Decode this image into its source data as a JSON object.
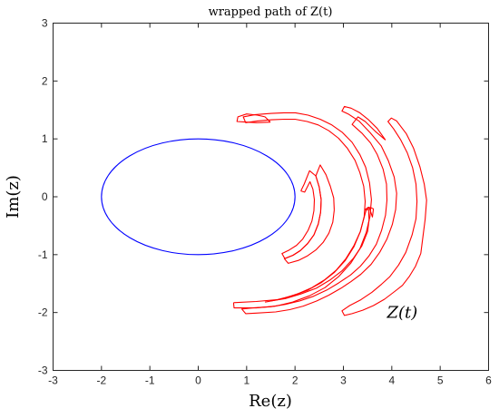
{
  "chart_data": {
    "type": "line",
    "title": "wrapped path of Z(t)",
    "xlabel": "Re(z)",
    "ylabel": "Im(z)",
    "xlim": [
      -3,
      6
    ],
    "ylim": [
      -3,
      3
    ],
    "xticks": [
      -3,
      -2,
      -1,
      0,
      1,
      2,
      3,
      4,
      5,
      6
    ],
    "yticks": [
      -3,
      -2,
      -1,
      0,
      1,
      2,
      3
    ],
    "grid": false,
    "annotation": "Z(t)",
    "annotation_point": [
      3.9,
      -2.0
    ],
    "series": [
      {
        "color": "#0000ff",
        "kind": "ellipse",
        "center": [
          0,
          0
        ],
        "semi_axes": [
          2,
          1
        ]
      },
      {
        "color": "#ff0000",
        "kind": "polyline",
        "points": [
          [
            4.6,
            -0.98
          ],
          [
            4.49,
            -1.2
          ],
          [
            4.36,
            -1.38
          ],
          [
            4.22,
            -1.53
          ],
          [
            4.07,
            -1.63
          ],
          [
            3.85,
            -1.77
          ],
          [
            3.62,
            -1.88
          ],
          [
            3.4,
            -1.96
          ],
          [
            3.18,
            -2.02
          ],
          [
            3.02,
            -2.05
          ],
          [
            2.97,
            -1.97
          ],
          [
            3.13,
            -1.88
          ],
          [
            3.36,
            -1.78
          ],
          [
            3.59,
            -1.65
          ],
          [
            3.79,
            -1.51
          ],
          [
            3.96,
            -1.38
          ],
          [
            4.14,
            -1.18
          ],
          [
            4.29,
            -0.96
          ],
          [
            4.42,
            -0.66
          ],
          [
            4.5,
            -0.38
          ],
          [
            4.52,
            -0.08
          ],
          [
            4.5,
            0.22
          ],
          [
            4.43,
            0.5
          ],
          [
            4.32,
            0.76
          ],
          [
            4.18,
            0.99
          ],
          [
            4.04,
            1.17
          ],
          [
            3.92,
            1.3
          ],
          [
            3.99,
            1.36
          ],
          [
            4.1,
            1.31
          ],
          [
            4.3,
            1.09
          ],
          [
            4.45,
            0.84
          ],
          [
            4.58,
            0.52
          ],
          [
            4.67,
            0.22
          ],
          [
            4.72,
            -0.06
          ],
          [
            4.69,
            -0.39
          ],
          [
            4.6,
            -0.98
          ]
        ]
      },
      {
        "color": "#ff0000",
        "kind": "polyline",
        "points": [
          [
            3.87,
            0.98
          ],
          [
            3.7,
            1.18
          ],
          [
            3.52,
            1.33
          ],
          [
            3.34,
            1.45
          ],
          [
            3.16,
            1.53
          ],
          [
            3.02,
            1.56
          ],
          [
            2.97,
            1.48
          ],
          [
            3.1,
            1.43
          ],
          [
            3.32,
            1.31
          ],
          [
            3.55,
            1.11
          ],
          [
            3.78,
            0.88
          ],
          [
            3.93,
            0.62
          ],
          [
            4.05,
            0.34
          ],
          [
            4.1,
            0.06
          ],
          [
            4.08,
            -0.22
          ],
          [
            4.01,
            -0.48
          ],
          [
            3.9,
            -0.73
          ],
          [
            3.75,
            -0.96
          ],
          [
            3.57,
            -1.17
          ],
          [
            3.36,
            -1.34
          ],
          [
            3.15,
            -1.47
          ],
          [
            2.95,
            -1.58
          ],
          [
            2.7,
            -1.7
          ],
          [
            2.45,
            -1.8
          ],
          [
            2.17,
            -1.89
          ],
          [
            1.89,
            -1.95
          ],
          [
            1.6,
            -1.99
          ],
          [
            1.2,
            -2.01
          ],
          [
            0.98,
            -2.02
          ],
          [
            0.9,
            -1.94
          ],
          [
            1.12,
            -1.92
          ],
          [
            1.5,
            -1.9
          ],
          [
            1.8,
            -1.86
          ],
          [
            2.1,
            -1.8
          ],
          [
            2.38,
            -1.72
          ],
          [
            2.66,
            -1.61
          ],
          [
            2.9,
            -1.49
          ],
          [
            3.15,
            -1.35
          ],
          [
            3.35,
            -1.2
          ],
          [
            3.53,
            -1.02
          ],
          [
            3.68,
            -0.82
          ],
          [
            3.79,
            -0.58
          ],
          [
            3.87,
            -0.32
          ],
          [
            3.9,
            -0.06
          ],
          [
            3.89,
            0.22
          ],
          [
            3.82,
            0.48
          ],
          [
            3.7,
            0.73
          ],
          [
            3.56,
            0.93
          ],
          [
            3.38,
            1.1
          ],
          [
            3.18,
            1.25
          ],
          [
            3.3,
            1.38
          ],
          [
            3.45,
            1.3
          ],
          [
            3.66,
            1.13
          ],
          [
            3.87,
            0.98
          ]
        ]
      },
      {
        "color": "#ff0000",
        "kind": "polyline",
        "points": [
          [
            0.73,
            -1.83
          ],
          [
            0.74,
            -1.92
          ],
          [
            1.2,
            -1.92
          ],
          [
            1.6,
            -1.89
          ],
          [
            1.95,
            -1.82
          ],
          [
            2.3,
            -1.71
          ],
          [
            2.62,
            -1.57
          ],
          [
            2.9,
            -1.38
          ],
          [
            3.15,
            -1.15
          ],
          [
            3.34,
            -0.9
          ],
          [
            3.47,
            -0.62
          ],
          [
            3.55,
            -0.34
          ],
          [
            3.58,
            -0.05
          ],
          [
            3.54,
            0.24
          ],
          [
            3.46,
            0.51
          ],
          [
            3.34,
            0.73
          ],
          [
            3.18,
            0.94
          ],
          [
            2.98,
            1.11
          ],
          [
            2.76,
            1.24
          ],
          [
            2.52,
            1.34
          ],
          [
            2.27,
            1.41
          ],
          [
            2.01,
            1.45
          ],
          [
            1.77,
            1.45
          ],
          [
            1.51,
            1.44
          ],
          [
            1.18,
            1.42
          ],
          [
            0.93,
            1.38
          ],
          [
            0.98,
            1.28
          ],
          [
            1.22,
            1.31
          ],
          [
            1.52,
            1.33
          ],
          [
            1.78,
            1.34
          ],
          [
            2.0,
            1.34
          ],
          [
            2.25,
            1.3
          ],
          [
            2.48,
            1.24
          ],
          [
            2.7,
            1.14
          ],
          [
            2.9,
            1.01
          ],
          [
            3.08,
            0.84
          ],
          [
            3.24,
            0.63
          ],
          [
            3.34,
            0.42
          ],
          [
            3.42,
            0.18
          ],
          [
            3.45,
            -0.08
          ],
          [
            3.43,
            -0.34
          ],
          [
            3.35,
            -0.6
          ],
          [
            3.22,
            -0.86
          ],
          [
            3.04,
            -1.1
          ],
          [
            2.81,
            -1.31
          ],
          [
            2.55,
            -1.48
          ],
          [
            2.27,
            -1.61
          ],
          [
            1.95,
            -1.71
          ],
          [
            1.62,
            -1.78
          ],
          [
            1.2,
            -1.81
          ],
          [
            0.73,
            -1.83
          ]
        ]
      },
      {
        "color": "#ff0000",
        "kind": "polyline",
        "points": [
          [
            3.45,
            -0.23
          ],
          [
            3.52,
            -0.22
          ],
          [
            3.53,
            -0.4
          ],
          [
            3.5,
            -0.6
          ],
          [
            3.38,
            -0.85
          ],
          [
            3.2,
            -1.07
          ],
          [
            2.97,
            -1.28
          ],
          [
            2.72,
            -1.44
          ],
          [
            2.44,
            -1.58
          ],
          [
            2.12,
            -1.68
          ],
          [
            1.8,
            -1.76
          ],
          [
            1.49,
            -1.8
          ],
          [
            1.49,
            -1.8
          ]
        ]
      },
      {
        "color": "#ff0000",
        "kind": "polyline",
        "points": [
          [
            1.49,
            1.29
          ],
          [
            1.38,
            1.38
          ],
          [
            1.22,
            1.41
          ],
          [
            1.0,
            1.43
          ],
          [
            0.82,
            1.38
          ],
          [
            0.8,
            1.3
          ],
          [
            1.0,
            1.29
          ],
          [
            1.2,
            1.28
          ],
          [
            1.49,
            1.29
          ]
        ]
      },
      {
        "color": "#ff0000",
        "kind": "polyline",
        "points": [
          [
            1.38,
            -1.82
          ],
          [
            1.7,
            -1.77
          ],
          [
            2.05,
            -1.68
          ],
          [
            2.35,
            -1.57
          ],
          [
            2.62,
            -1.43
          ],
          [
            2.85,
            -1.27
          ],
          [
            3.05,
            -1.07
          ],
          [
            3.22,
            -0.84
          ],
          [
            3.35,
            -0.6
          ],
          [
            3.44,
            -0.32
          ],
          [
            3.48,
            -0.2
          ],
          [
            3.54,
            -0.2
          ],
          [
            3.6,
            -0.35
          ],
          [
            3.62,
            -0.21
          ],
          [
            3.57,
            -0.19
          ],
          [
            3.52,
            -0.18
          ],
          [
            3.45,
            -0.22
          ]
        ]
      },
      {
        "color": "#ff0000",
        "kind": "polyline",
        "points": [
          [
            2.12,
            0.1
          ],
          [
            2.19,
            0.22
          ],
          [
            2.3,
            0.45
          ],
          [
            2.43,
            0.36
          ],
          [
            2.5,
            0.17
          ],
          [
            2.54,
            -0.05
          ],
          [
            2.53,
            -0.27
          ],
          [
            2.48,
            -0.47
          ],
          [
            2.39,
            -0.66
          ],
          [
            2.26,
            -0.81
          ],
          [
            2.11,
            -0.93
          ],
          [
            1.96,
            -1.01
          ],
          [
            1.79,
            -1.07
          ],
          [
            1.73,
            -0.98
          ],
          [
            1.88,
            -0.92
          ],
          [
            2.03,
            -0.84
          ],
          [
            2.16,
            -0.73
          ],
          [
            2.27,
            -0.58
          ],
          [
            2.35,
            -0.42
          ],
          [
            2.39,
            -0.24
          ],
          [
            2.4,
            -0.05
          ],
          [
            2.37,
            0.13
          ],
          [
            2.31,
            0.26
          ],
          [
            2.2,
            0.08
          ],
          [
            2.12,
            0.1
          ]
        ]
      },
      {
        "color": "#ff0000",
        "kind": "polyline",
        "points": [
          [
            2.81,
            -0.23
          ],
          [
            2.78,
            -0.44
          ],
          [
            2.7,
            -0.63
          ],
          [
            2.58,
            -0.79
          ],
          [
            2.43,
            -0.92
          ],
          [
            2.26,
            -1.02
          ],
          [
            2.07,
            -1.1
          ],
          [
            1.86,
            -1.15
          ],
          [
            1.78,
            -1.07
          ],
          [
            1.96,
            -1.01
          ],
          [
            2.11,
            -0.93
          ],
          [
            2.26,
            -0.81
          ],
          [
            2.39,
            -0.66
          ],
          [
            2.48,
            -0.47
          ],
          [
            2.53,
            -0.27
          ],
          [
            2.54,
            -0.05
          ],
          [
            2.5,
            0.17
          ],
          [
            2.43,
            0.36
          ],
          [
            2.52,
            0.55
          ],
          [
            2.64,
            0.38
          ],
          [
            2.73,
            0.18
          ],
          [
            2.8,
            -0.02
          ],
          [
            2.81,
            -0.23
          ]
        ]
      }
    ]
  }
}
